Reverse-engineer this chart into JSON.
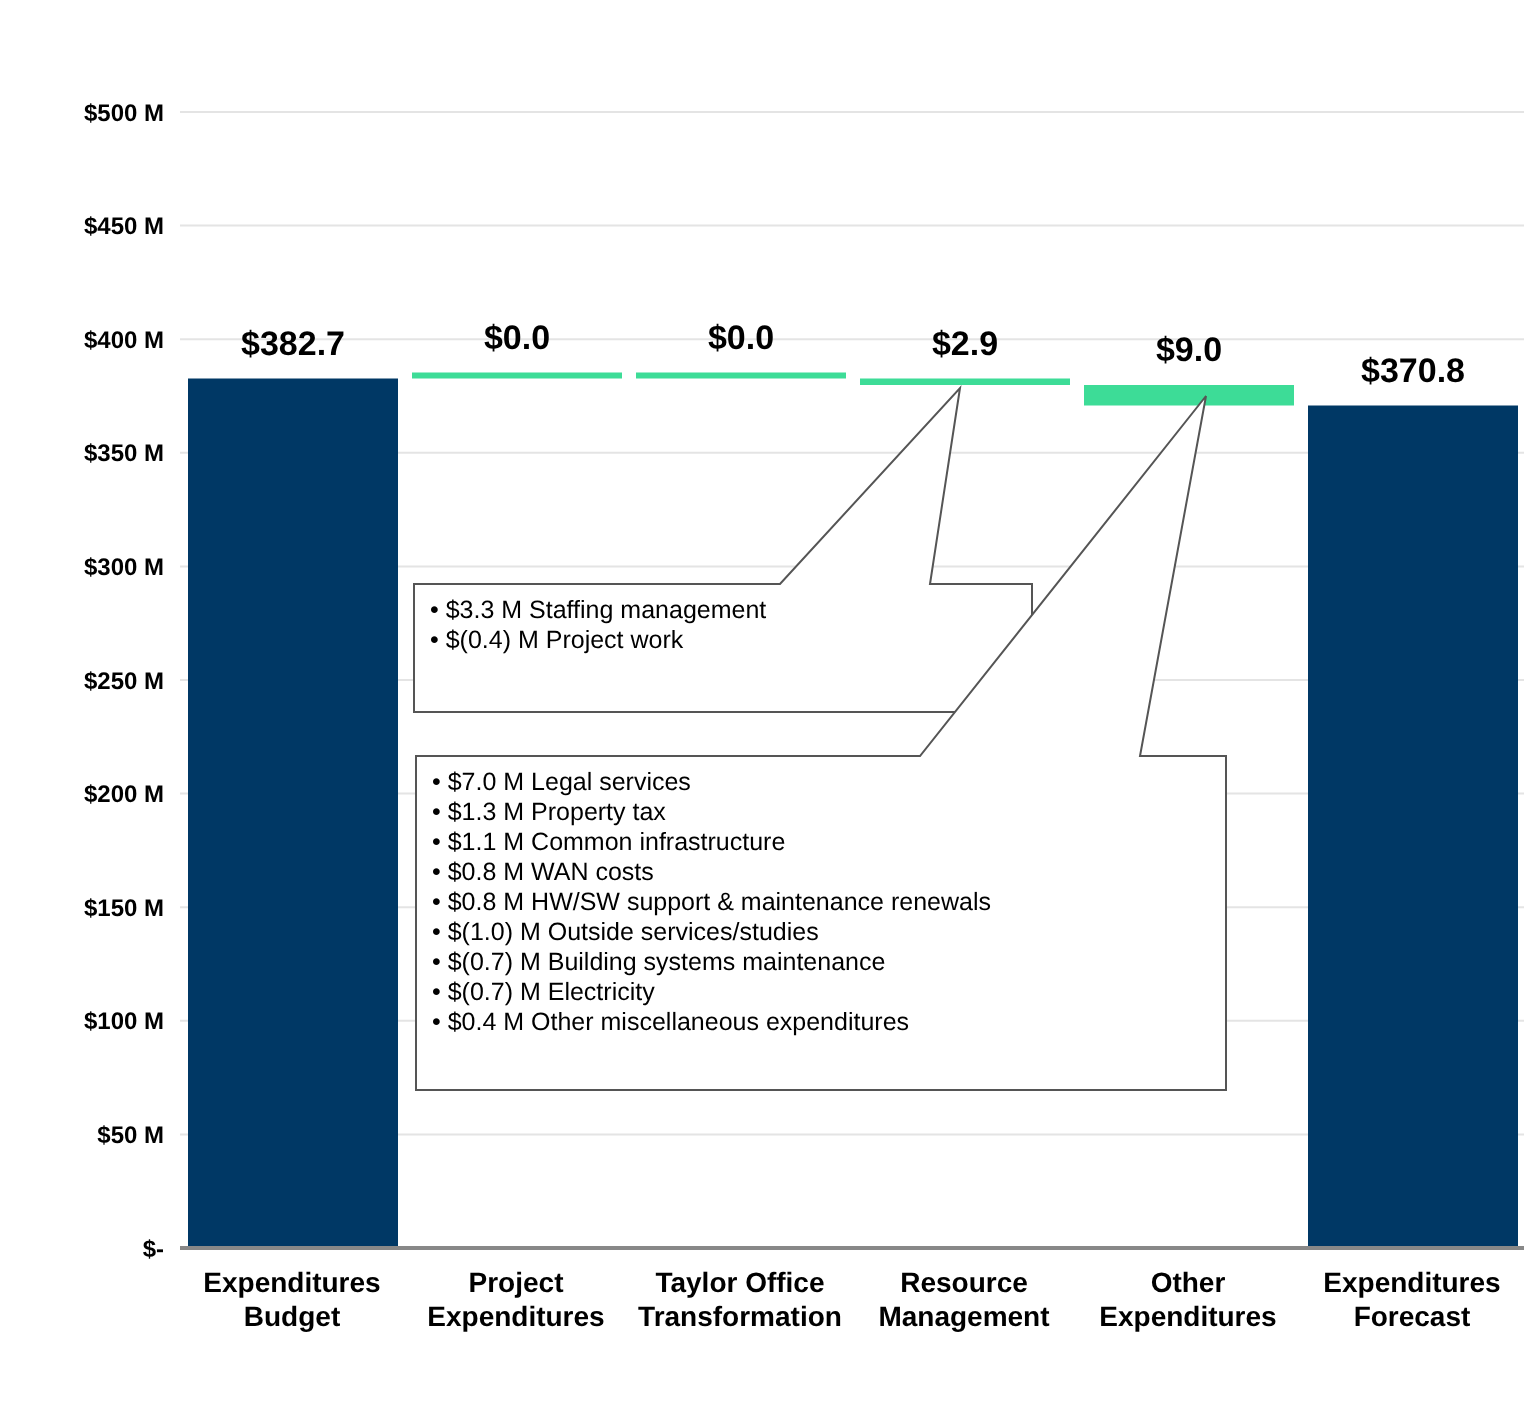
{
  "chart_data": {
    "type": "bar",
    "categories": [
      "Expenditures Budget",
      "Project Expenditures",
      "Taylor Office Transformation",
      "Resource Management",
      "Other Expenditures",
      "Expenditures Forecast"
    ],
    "values": [
      382.7,
      0.0,
      0.0,
      2.9,
      9.0,
      370.8
    ],
    "base": [
      0,
      382.7,
      382.7,
      379.8,
      370.8,
      0
    ],
    "colors": [
      "#003865",
      "#3ddc97",
      "#3ddc97",
      "#3ddc97",
      "#3ddc97",
      "#003865"
    ],
    "value_labels": [
      "$382.7",
      "$0.0",
      "$0.0",
      "$2.9",
      "$9.0",
      "$370.8"
    ],
    "ylim": [
      0,
      500
    ],
    "yticks": [
      {
        "value": 0,
        "label": "$-"
      },
      {
        "value": 50,
        "label": "$50 M"
      },
      {
        "value": 100,
        "label": "$100 M"
      },
      {
        "value": 150,
        "label": "$150 M"
      },
      {
        "value": 200,
        "label": "$200 M"
      },
      {
        "value": 250,
        "label": "$250 M"
      },
      {
        "value": 300,
        "label": "$300 M"
      },
      {
        "value": 350,
        "label": "$350 M"
      },
      {
        "value": 400,
        "label": "$400 M"
      },
      {
        "value": 450,
        "label": "$450 M"
      },
      {
        "value": 500,
        "label": "$500 M"
      }
    ],
    "grid": "y",
    "annotations": [
      "• $3.3 M Staffing management\n• $(0.4) M Project work",
      "• $7.0 M Legal services\n• $1.3 M Property tax\n• $1.1 M Common infrastructure\n• $0.8 M WAN costs\n• $0.8 M HW/SW support & maintenance renewals\n• $(1.0) M Outside services/studies\n• $(0.7) M Building systems maintenance\n• $(0.7) M Electricity\n• $0.4 M Other miscellaneous expenditures"
    ]
  }
}
